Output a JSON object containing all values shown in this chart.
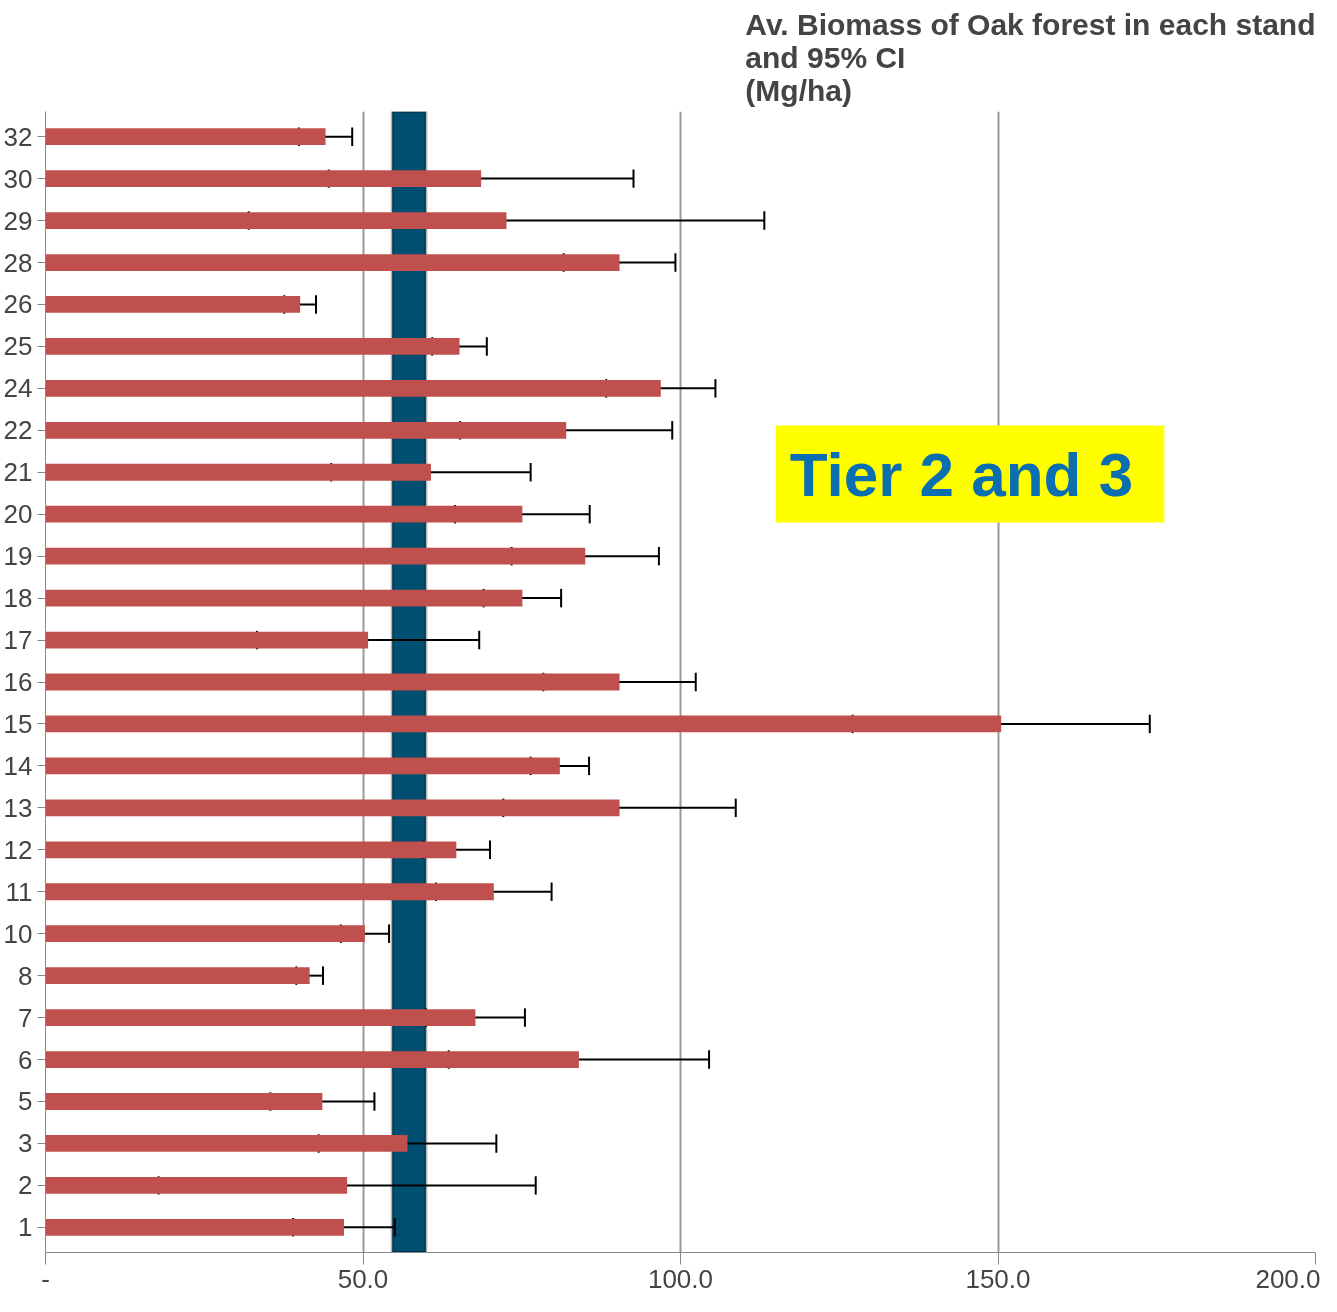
{
  "chart_data": {
    "type": "bar",
    "orientation": "horizontal",
    "title": "Av. Biomass of Oak forest in each stand\nand 95% CI\n(Mg/ha)",
    "categories": [
      "32",
      "30",
      "29",
      "28",
      "26",
      "25",
      "24",
      "22",
      "21",
      "20",
      "19",
      "18",
      "17",
      "16",
      "15",
      "14",
      "13",
      "12",
      "11",
      "10",
      "8",
      "7",
      "6",
      "5",
      "3",
      "2",
      "1"
    ],
    "values": [
      44.1,
      68.6,
      72.6,
      90.4,
      40.1,
      65.2,
      96.9,
      82.0,
      60.7,
      75.1,
      85.0,
      75.1,
      50.8,
      90.4,
      150.5,
      81.0,
      90.4,
      64.7,
      70.6,
      50.3,
      41.6,
      67.7,
      84.0,
      43.6,
      57,
      47.5,
      47.0
    ],
    "errors": [
      4.2,
      24,
      40.6,
      8.8,
      2.5,
      4.3,
      8.6,
      16.7,
      15.7,
      10.6,
      11.6,
      6.1,
      17.5,
      12.0,
      23.4,
      4.6,
      18.3,
      5.3,
      9.1,
      3.8,
      2.1,
      7.8,
      20.5,
      8.2,
      14,
      29.7,
      8
    ],
    "color": "#c0504d",
    "xlim": [
      0,
      200
    ],
    "xticks": [
      {
        "value": 0,
        "label": "-"
      },
      {
        "value": 50,
        "label": "50.0"
      },
      {
        "value": 100,
        "label": "100.0"
      },
      {
        "value": 150,
        "label": "150.0"
      },
      {
        "value": 200,
        "label": "200.0"
      }
    ],
    "grid": "x",
    "bands": [
      {
        "axis": "x",
        "from": 54.6,
        "to": 59.9,
        "color": "#004f71"
      }
    ],
    "annotations": [
      "Tier  2 and 3"
    ]
  }
}
